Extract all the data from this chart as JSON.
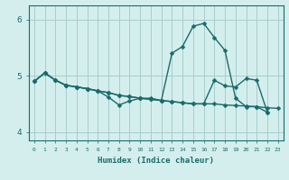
{
  "xlabel": "Humidex (Indice chaleur)",
  "bg_color": "#d4eeee",
  "grid_color": "#a8cccc",
  "line_color": "#1a6b6b",
  "xlim": [
    -0.5,
    23.5
  ],
  "ylim": [
    3.85,
    6.25
  ],
  "yticks": [
    4,
    5,
    6
  ],
  "xticks": [
    0,
    1,
    2,
    3,
    4,
    5,
    6,
    7,
    8,
    9,
    10,
    11,
    12,
    13,
    14,
    15,
    16,
    17,
    18,
    19,
    20,
    21,
    22,
    23
  ],
  "series": [
    {
      "x": [
        0,
        1,
        2,
        3,
        4,
        5,
        6,
        7,
        8,
        9,
        10,
        11,
        12,
        13,
        14,
        15,
        16,
        17,
        18,
        19,
        20,
        21,
        22,
        23
      ],
      "y": [
        4.9,
        5.05,
        4.92,
        4.83,
        4.8,
        4.77,
        4.73,
        4.7,
        4.65,
        4.63,
        4.6,
        4.58,
        4.56,
        4.54,
        4.52,
        4.5,
        4.5,
        4.5,
        4.48,
        4.47,
        4.46,
        4.45,
        4.43,
        4.42
      ]
    },
    {
      "x": [
        0,
        1,
        2,
        3,
        4,
        5,
        6,
        7,
        8,
        9,
        10,
        11,
        12,
        13,
        14,
        15,
        16,
        17,
        18,
        19,
        20,
        21,
        22
      ],
      "y": [
        4.9,
        5.05,
        4.92,
        4.83,
        4.8,
        4.77,
        4.73,
        4.7,
        4.65,
        4.63,
        4.6,
        4.58,
        4.56,
        4.54,
        4.52,
        4.5,
        4.5,
        4.92,
        4.82,
        4.8,
        4.95,
        4.92,
        4.35
      ]
    },
    {
      "x": [
        0,
        1,
        2,
        3,
        4,
        5,
        6,
        7,
        8,
        9,
        10,
        11,
        12,
        13,
        14,
        15,
        16,
        17,
        18,
        19,
        20,
        21,
        22
      ],
      "y": [
        4.9,
        5.05,
        4.92,
        4.83,
        4.8,
        4.77,
        4.73,
        4.62,
        4.48,
        4.55,
        4.6,
        4.6,
        4.56,
        5.4,
        5.52,
        5.88,
        5.93,
        5.68,
        5.45,
        4.6,
        4.45,
        4.45,
        4.35
      ]
    }
  ],
  "markersize": 2.5,
  "linewidth": 1.0
}
